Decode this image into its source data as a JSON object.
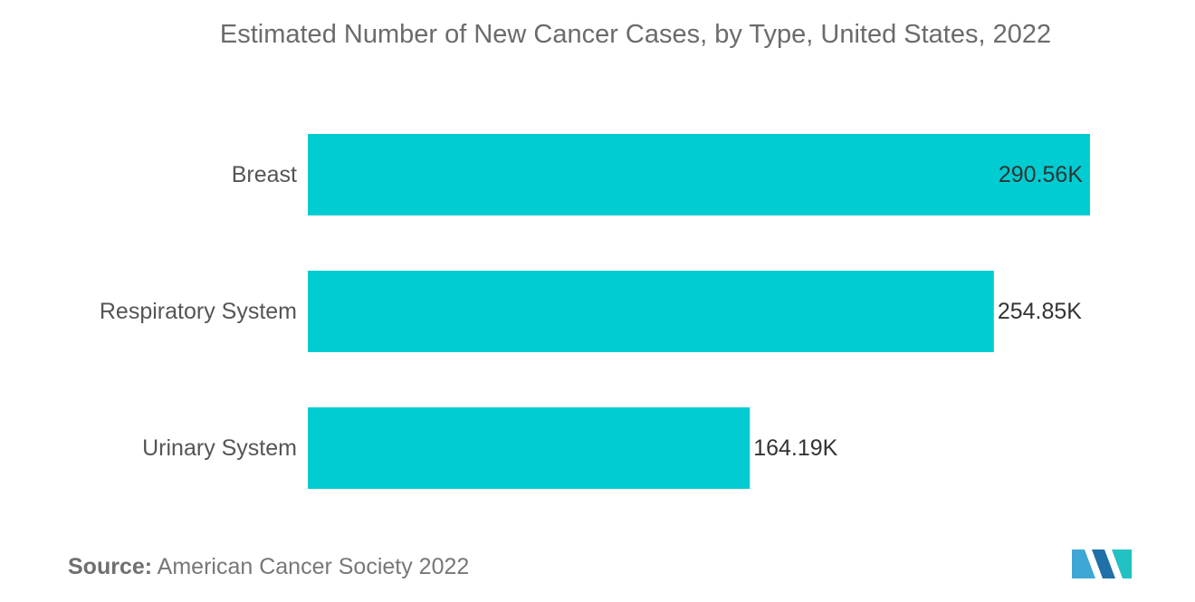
{
  "chart_data": {
    "type": "bar",
    "orientation": "horizontal",
    "title": "Estimated Number of New Cancer Cases, by Type, United States, 2022",
    "categories": [
      "Breast",
      "Respiratory System",
      "Urinary System"
    ],
    "values": [
      290.56,
      254.85,
      164.19
    ],
    "value_labels": [
      "290.56K",
      "254.85K",
      "164.19K"
    ],
    "unit": "K",
    "xlabel": "",
    "ylabel": "",
    "xlim": [
      0,
      290.56
    ],
    "grid": false,
    "legend": "none",
    "bar_color": "#00ccd1"
  },
  "source": {
    "label": "Source:",
    "text": "American Cancer Society 2022"
  },
  "logo": {
    "icon": "company-logo-icon",
    "colors": [
      "#3fa7d6",
      "#1f6fa8",
      "#22c1c3"
    ]
  }
}
